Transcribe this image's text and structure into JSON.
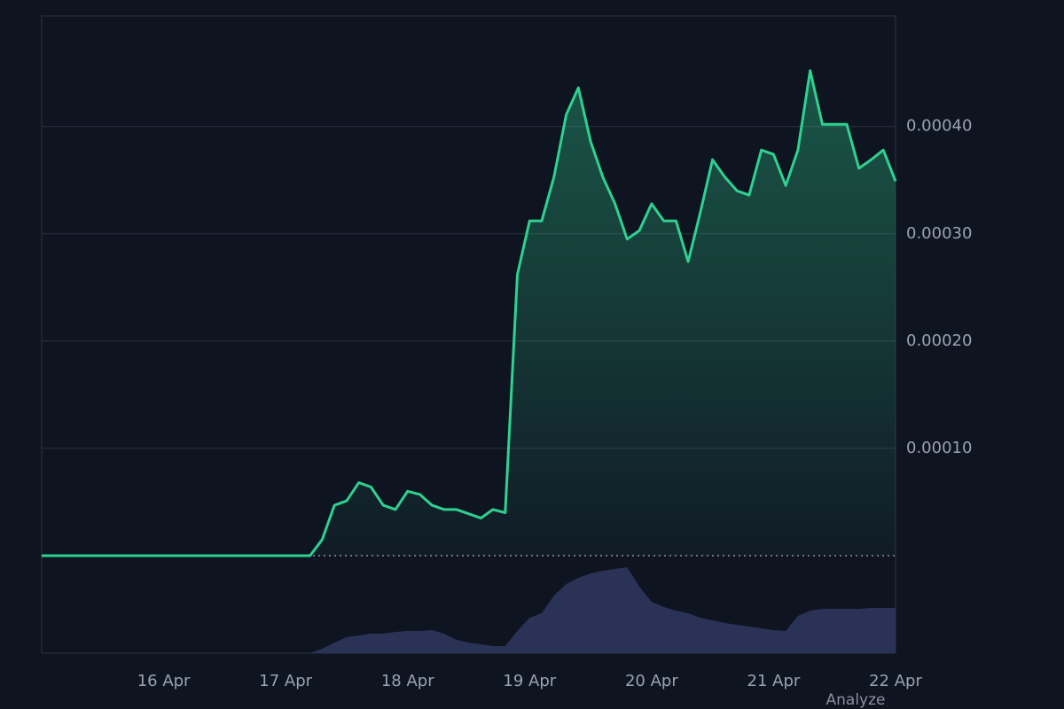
{
  "chart_data": {
    "type": "line",
    "categories": [
      null,
      null,
      null,
      null,
      null,
      null,
      null,
      null,
      null,
      null,
      "16 Apr",
      null,
      null,
      null,
      null,
      null,
      null,
      null,
      null,
      null,
      "17 Apr",
      null,
      null,
      null,
      null,
      null,
      null,
      null,
      null,
      null,
      "18 Apr",
      null,
      null,
      null,
      null,
      null,
      null,
      null,
      null,
      null,
      "19 Apr",
      null,
      null,
      null,
      null,
      null,
      null,
      null,
      null,
      null,
      "20 Apr",
      null,
      null,
      null,
      null,
      null,
      null,
      null,
      null,
      null,
      "21 Apr",
      null,
      null,
      null,
      null,
      null,
      null,
      null,
      null,
      null,
      "22 Apr"
    ],
    "series": [
      {
        "color": "#2ed18f",
        "values": [
          0,
          0,
          0,
          0,
          0,
          0,
          0,
          0,
          0,
          0,
          0,
          0,
          0,
          0,
          0,
          0,
          0,
          0,
          0,
          0,
          0,
          0,
          0,
          1.5e-05,
          4.7e-05,
          5.1e-05,
          6.8e-05,
          6.4e-05,
          4.7e-05,
          4.3e-05,
          6e-05,
          5.7e-05,
          4.7e-05,
          4.3e-05,
          4.3e-05,
          3.9e-05,
          3.5e-05,
          4.3e-05,
          4e-05,
          0.000262,
          0.000312,
          0.000312,
          0.000353,
          0.000411,
          0.000436,
          0.000386,
          0.000353,
          0.000328,
          0.000295,
          0.000303,
          0.000328,
          0.000312,
          0.000312,
          0.000274,
          0.00032,
          0.000369,
          0.000353,
          0.00034,
          0.000336,
          0.000378,
          0.000374,
          0.000345,
          0.000378,
          0.000452,
          0.000402,
          0.000402,
          0.000402,
          0.000361,
          0.000369,
          0.000378,
          0.000349
        ]
      },
      {
        "color": "#2a3356",
        "axis": "y2",
        "values": [
          0,
          0,
          0,
          0,
          0,
          0,
          0,
          0,
          0,
          0,
          0,
          0,
          0,
          0,
          0,
          0,
          0,
          0,
          0,
          0,
          0,
          0,
          0,
          5,
          12,
          18,
          20,
          22,
          22,
          24,
          25,
          25,
          26,
          22,
          15,
          12,
          10,
          8,
          8,
          25,
          40,
          45,
          65,
          78,
          85,
          90,
          93,
          95,
          97,
          75,
          58,
          52,
          48,
          45,
          40,
          37,
          34,
          32,
          30,
          28,
          26,
          25,
          42,
          48,
          50,
          50,
          50,
          50,
          51,
          51,
          51
        ]
      }
    ],
    "ylim": [
      -9.09e-05,
      0.000503
    ],
    "yticks": [
      {
        "value": 0.0001,
        "label": "0.00010"
      },
      {
        "value": 0.0002,
        "label": "0.00020"
      },
      {
        "value": 0.0003,
        "label": "0.00030"
      },
      {
        "value": 0.0004,
        "label": "0.00040"
      }
    ],
    "y2lim": [
      0,
      719
    ],
    "grid": true,
    "annotation": "Analyze"
  }
}
